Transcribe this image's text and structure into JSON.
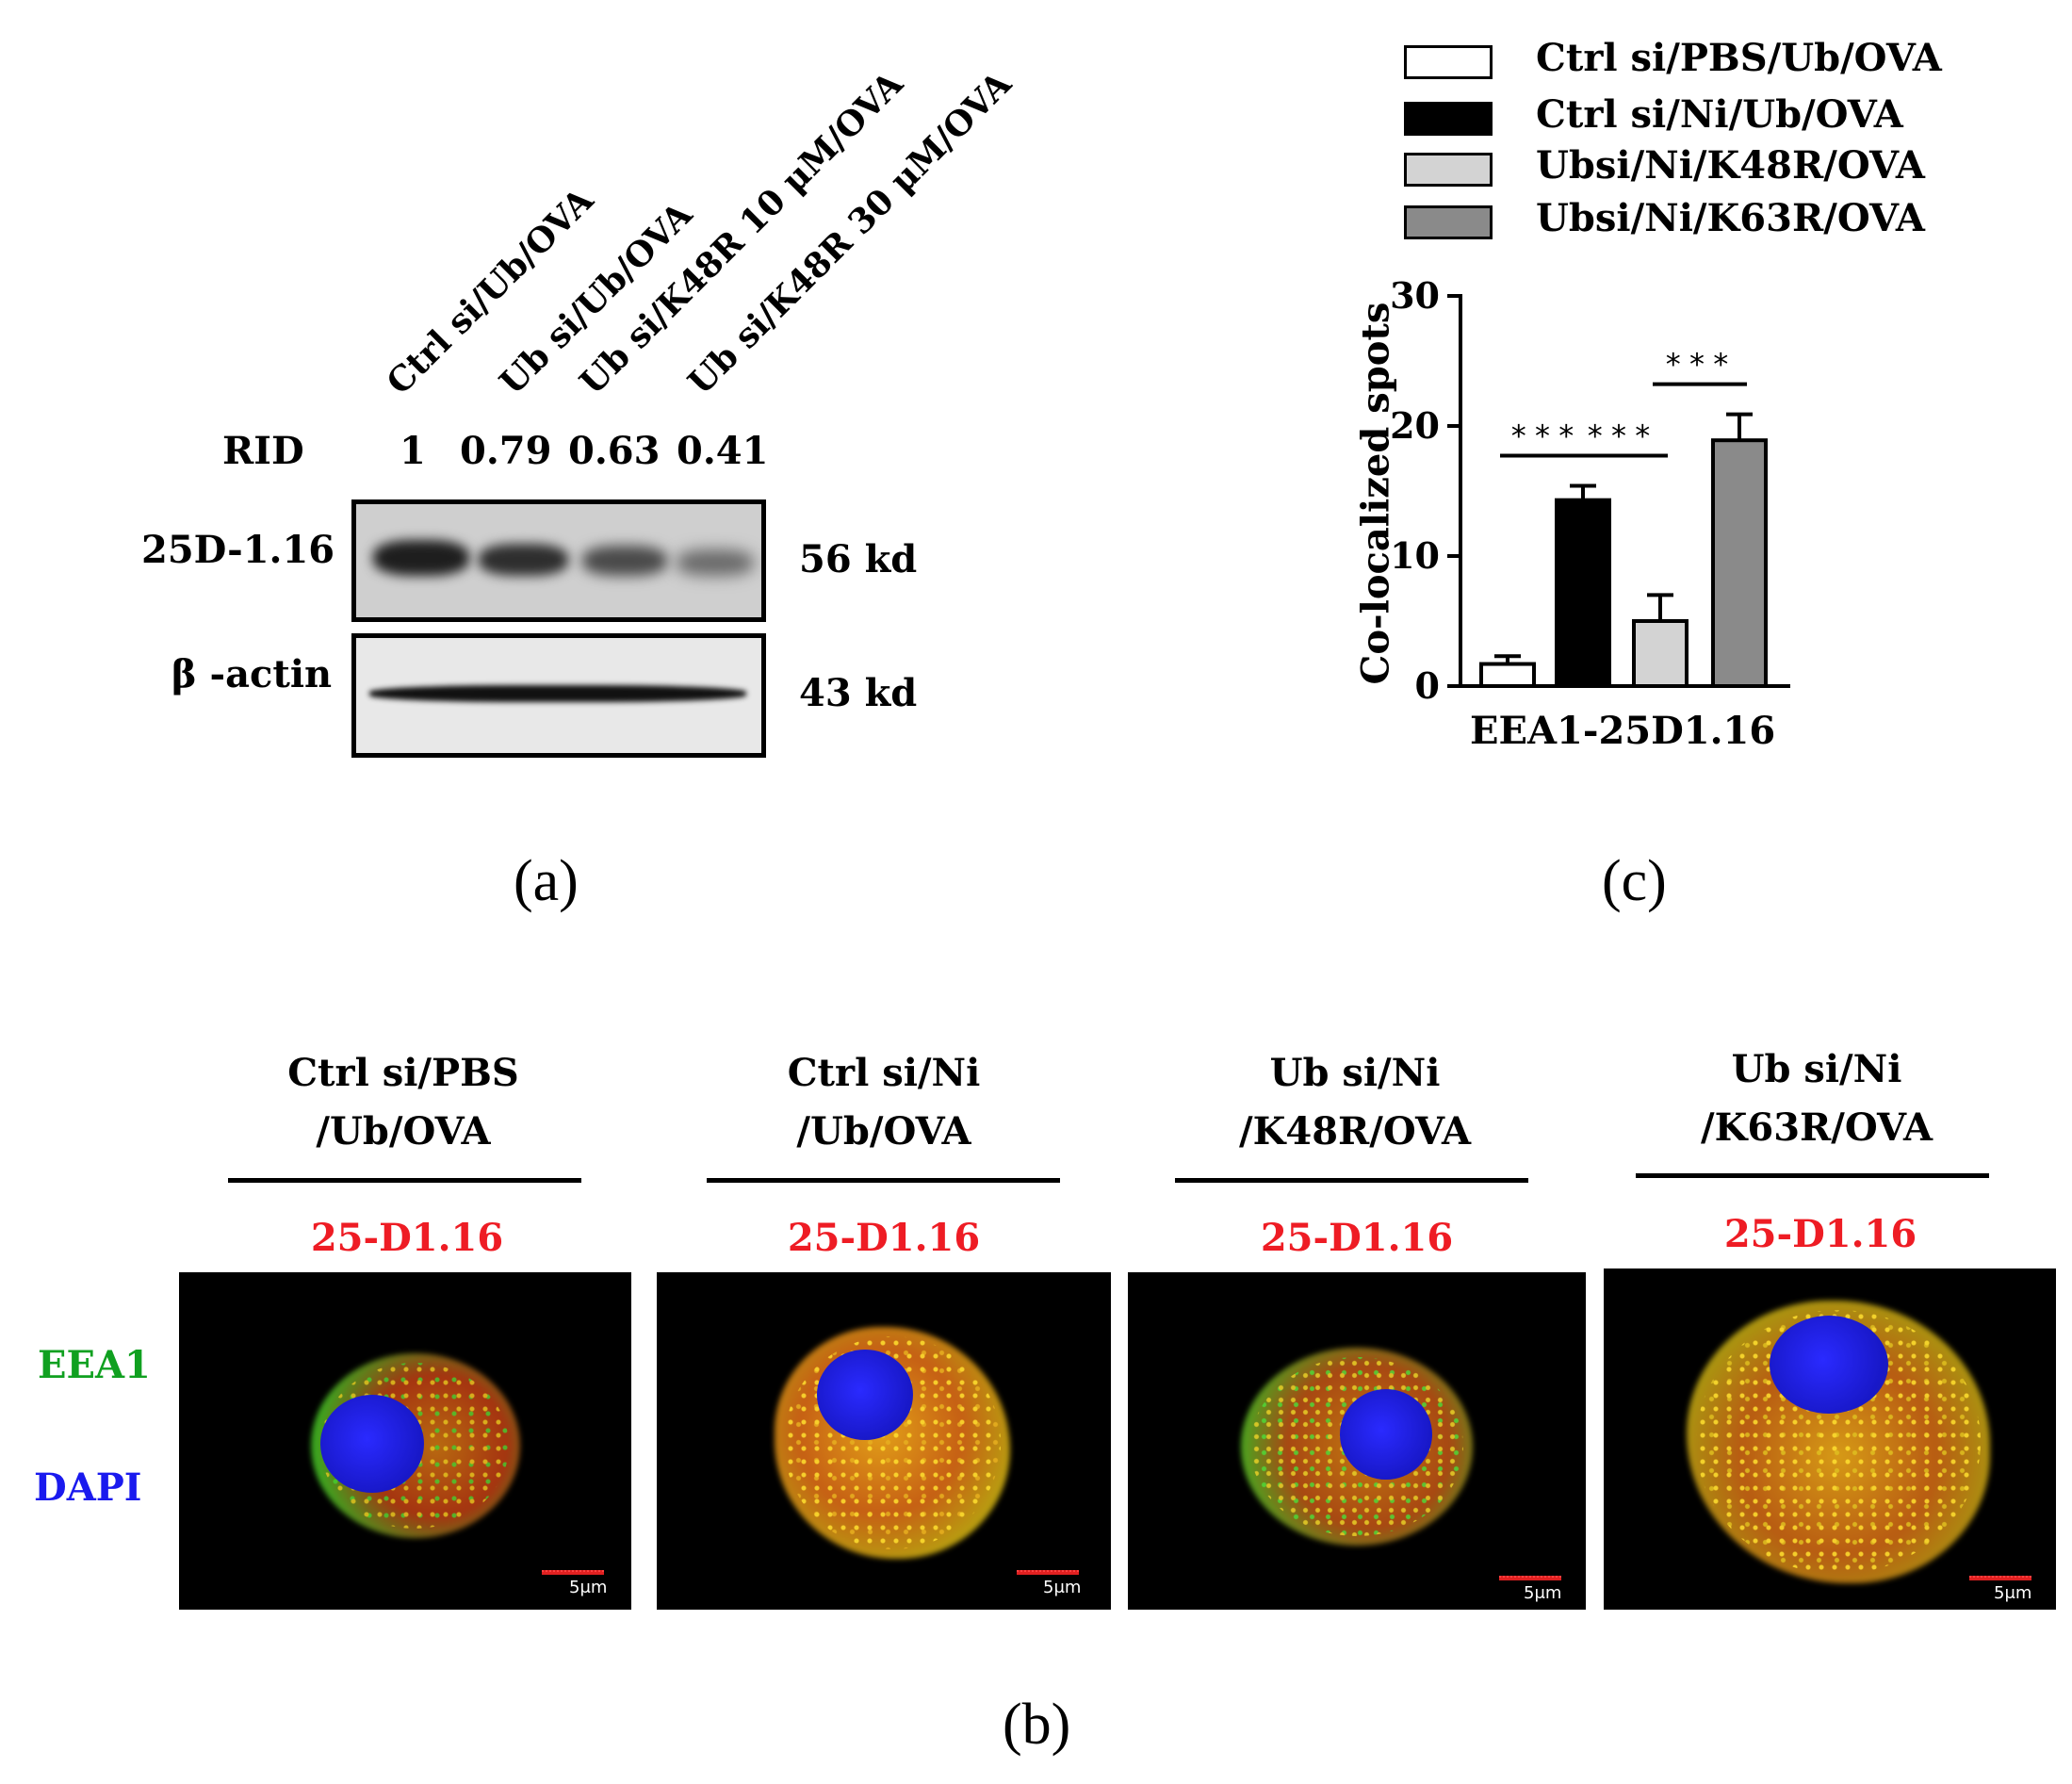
{
  "panel_a": {
    "label": "(a)",
    "lanes": [
      "Ctrl si/Ub/OVA",
      "Ub si/Ub/OVA",
      "Ub si/K48R 10 μM/OVA",
      "Ub si/K48R 30 μM/OVA"
    ],
    "rid_label": "RID",
    "rid_values": [
      "1",
      "0.79",
      "0.63",
      "0.41"
    ],
    "rid_numeric": [
      1,
      0.79,
      0.63,
      0.41
    ],
    "blots": [
      {
        "name": "25D-1.16",
        "size": "56 kd"
      },
      {
        "name": "β -actin",
        "size": "43 kd"
      }
    ]
  },
  "panel_b": {
    "label": "(b)",
    "groups": [
      {
        "title_line1": "Ctrl si/PBS",
        "title_line2": "/Ub/OVA",
        "stain": "25-D1.16",
        "scale": "5μm"
      },
      {
        "title_line1": "Ctrl si/Ni",
        "title_line2": "/Ub/OVA",
        "stain": "25-D1.16",
        "scale": "5μm"
      },
      {
        "title_line1": "Ub si/Ni",
        "title_line2": "/K48R/OVA",
        "stain": "25-D1.16",
        "scale": "5μm"
      },
      {
        "title_line1": "Ub si/Ni",
        "title_line2": "/K63R/OVA",
        "stain": "25-D1.16",
        "scale": "5μm"
      }
    ],
    "channels": [
      {
        "label": "EEA1",
        "color": "#10a020"
      },
      {
        "label": "DAPI",
        "color": "#1a1aee"
      }
    ]
  },
  "panel_c": {
    "label": "(c)",
    "chart_data": {
      "type": "bar",
      "ylabel": "Co-localized spots",
      "xlabel": "EEA1-25D1.16",
      "ylim": [
        0,
        30
      ],
      "yticks": [
        "0",
        "10",
        "20",
        "30"
      ],
      "yticks_numeric": [
        0,
        10,
        20,
        30
      ],
      "series": [
        {
          "name": "Ctrl si/PBS/Ub/OVA",
          "value": 1.7,
          "error": 0.6,
          "color": "#ffffff"
        },
        {
          "name": "Ctrl si/Ni/Ub/OVA",
          "value": 14.3,
          "error": 1.1,
          "color": "#000000"
        },
        {
          "name": "Ubsi/Ni/K48R/OVA",
          "value": 5.0,
          "error": 2.0,
          "color": "#d3d3d3"
        },
        {
          "name": "Ubsi/Ni/K63R/OVA",
          "value": 18.9,
          "error": 2.0,
          "color": "#8a8a8a"
        }
      ],
      "significance": [
        {
          "from": 0,
          "to": 1,
          "label": "***"
        },
        {
          "from": 1,
          "to": 2,
          "label": "***"
        },
        {
          "from": 2,
          "to": 3,
          "label": "***"
        }
      ],
      "legend_position": "top"
    }
  }
}
